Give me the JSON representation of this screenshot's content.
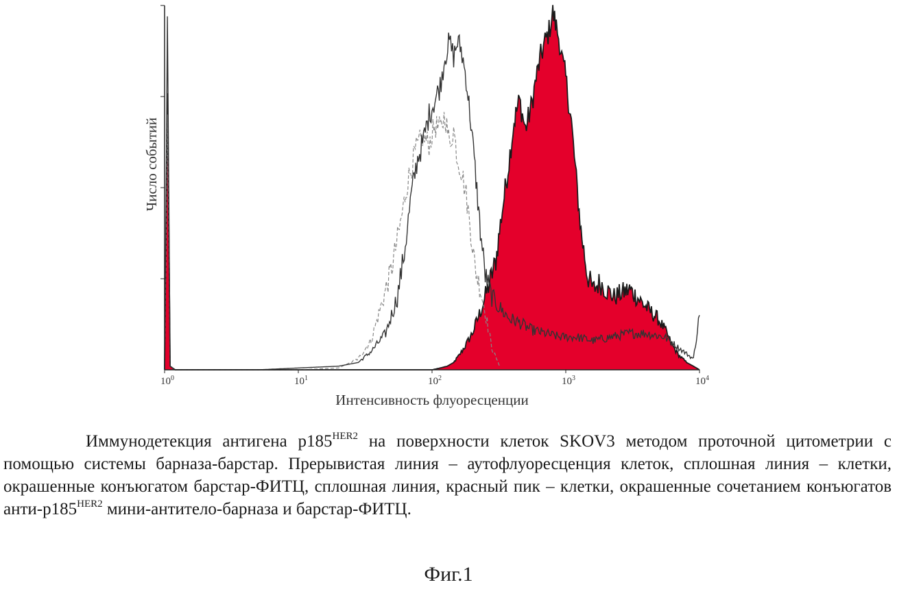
{
  "chart_data": {
    "type": "area",
    "xscale": "log",
    "xlim": [
      1,
      10000
    ],
    "ylim": [
      0,
      1
    ],
    "xlabel": "Интенсивность флуоресценции",
    "ylabel": "Число событий",
    "xticks": [
      {
        "base": "10",
        "exp": "0",
        "value": 1
      },
      {
        "base": "10",
        "exp": "1",
        "value": 10
      },
      {
        "base": "10",
        "exp": "2",
        "value": 100
      },
      {
        "base": "10",
        "exp": "3",
        "value": 1000
      },
      {
        "base": "10",
        "exp": "4",
        "value": 10000
      }
    ],
    "series": [
      {
        "style": "dashed",
        "color": "#888888",
        "x": [
          1,
          1.05,
          1.1,
          1.2,
          2,
          5,
          10,
          20,
          28,
          35,
          42,
          50,
          58,
          66,
          75,
          85,
          95,
          105,
          115,
          125,
          135,
          145,
          155,
          165,
          180,
          195,
          210,
          230,
          250,
          280,
          320
        ],
        "y": [
          0,
          0.72,
          0.01,
          0,
          0,
          0,
          0,
          0.005,
          0.03,
          0.08,
          0.18,
          0.28,
          0.4,
          0.52,
          0.6,
          0.64,
          0.62,
          0.67,
          0.66,
          0.7,
          0.62,
          0.66,
          0.58,
          0.55,
          0.48,
          0.38,
          0.28,
          0.22,
          0.16,
          0.06,
          0.01
        ]
      },
      {
        "style": "solid",
        "color": "#333333",
        "x": [
          1,
          1.05,
          1.1,
          1.2,
          2,
          5,
          10,
          20,
          28,
          35,
          45,
          55,
          62,
          70,
          78,
          85,
          95,
          105,
          115,
          125,
          135,
          145,
          155,
          165,
          180,
          195,
          210,
          230,
          250,
          280,
          320,
          380,
          450,
          550,
          700,
          900,
          1200,
          1600,
          2200,
          3000,
          4000,
          5500,
          7000,
          9000,
          10000
        ],
        "y": [
          0,
          0.98,
          0.01,
          0,
          0,
          0,
          0.005,
          0.01,
          0.02,
          0.05,
          0.1,
          0.2,
          0.32,
          0.48,
          0.58,
          0.62,
          0.7,
          0.74,
          0.78,
          0.86,
          0.9,
          0.86,
          0.9,
          0.88,
          0.8,
          0.68,
          0.55,
          0.38,
          0.26,
          0.2,
          0.17,
          0.14,
          0.13,
          0.11,
          0.1,
          0.09,
          0.09,
          0.08,
          0.09,
          0.1,
          0.1,
          0.09,
          0.06,
          0.03,
          0.15
        ]
      },
      {
        "style": "filled",
        "color": "#e4002b",
        "x": [
          1,
          1.05,
          1.1,
          1.2,
          2,
          10,
          100,
          115,
          130,
          145,
          160,
          180,
          200,
          230,
          260,
          300,
          330,
          370,
          410,
          450,
          500,
          550,
          600,
          650,
          700,
          750,
          800,
          850,
          900,
          950,
          1000,
          1100,
          1200,
          1300,
          1450,
          1600,
          1800,
          2000,
          2300,
          2600,
          3000,
          3400,
          3800,
          4300,
          4900,
          5500,
          6200,
          7000,
          8000,
          9000,
          10000
        ],
        "y": [
          0,
          0.75,
          0.01,
          0,
          0,
          0,
          0,
          0.005,
          0.01,
          0.02,
          0.04,
          0.07,
          0.1,
          0.16,
          0.22,
          0.3,
          0.42,
          0.55,
          0.68,
          0.74,
          0.66,
          0.72,
          0.8,
          0.86,
          0.9,
          0.93,
          0.98,
          0.94,
          0.9,
          0.84,
          0.8,
          0.68,
          0.52,
          0.38,
          0.26,
          0.22,
          0.24,
          0.22,
          0.2,
          0.21,
          0.22,
          0.2,
          0.18,
          0.16,
          0.14,
          0.11,
          0.07,
          0.04,
          0.02,
          0.01,
          0
        ]
      }
    ]
  },
  "caption": {
    "line1_before": "Иммунодетекция антигена p185",
    "line1_sup": "HER2",
    "line1_after": " на поверхности клеток SKOV3 методом проточной цитометрии с помощью системы барназа-барстар. Прерывистая линия – аутофлуоресценция клеток, сплошная линия – клетки, окрашенные конъюгатом барстар-ФИТЦ, сплошная линия, красный пик – клетки, окрашенные сочетанием конъюгатов анти-p185",
    "line2_sup": "HER2",
    "line2_after": " мини-антитело-барназа и барстар-ФИТЦ."
  },
  "figure_label": "Фиг.1"
}
